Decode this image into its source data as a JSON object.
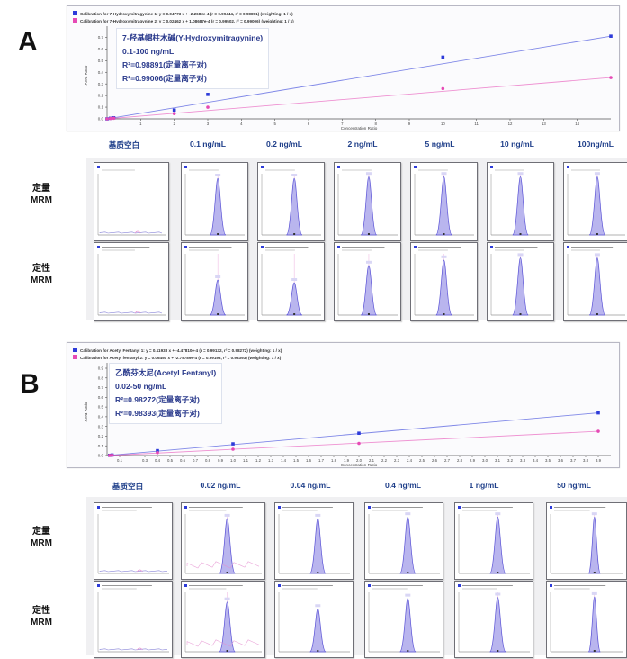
{
  "panels": [
    {
      "letter": "A",
      "legend": [
        {
          "text": "Calibration for 7-Hydroxymitragynine 1: y = 0.04773 x + -2.2683e-4 (r = 0.99444, r² = 0.98891) (weighting: 1 / x)",
          "color": "#2d3bd9"
        },
        {
          "text": "Calibration for 7-Hydroxymitragynine 2: y = 0.02462 x + 1.08687e-4 (r = 0.99502, r² = 0.99006) (weighting: 1 / x)",
          "color": "#e64ab5"
        }
      ],
      "annotation": {
        "compound": "7-羟基帽柱木碱(Y-Hydroxymitragynine)",
        "range": "0.1-100 ng/mL",
        "r2_quant": "R²=0.98891(定量离子对)",
        "r2_qual": "R²=0.99006(定量离子对)"
      },
      "concentrations": [
        "基质空白",
        "0.1 ng/mL",
        "0.2 ng/mL",
        "2 ng/mL",
        "5 ng/mL",
        "10 ng/mL",
        "100ng/mL"
      ],
      "row_labels": {
        "quant": [
          "定量",
          "MRM"
        ],
        "qual": [
          "定性",
          "MRM"
        ]
      }
    },
    {
      "letter": "B",
      "legend": [
        {
          "text": "Calibration for Acetyl Fentanyl 1: y = 0.11933 x + -4.47810e-4 (r = 0.99132, r² = 0.98272) (weighting: 1 / x)",
          "color": "#2d3bd9"
        },
        {
          "text": "Calibration for Acetyl fentanyl 2: y = 0.06450 x + -2.78789e-4 (r = 0.99193, r² = 0.98393) (weighting: 1 / x)",
          "color": "#e64ab5"
        }
      ],
      "annotation": {
        "compound": "乙酰芬太尼(Acetyl Fentanyl)",
        "range": "0.02-50 ng/mL",
        "r2_quant": "R²=0.98272(定量离子对)",
        "r2_qual": "R²=0.98393(定量离子对)"
      },
      "concentrations": [
        "基质空白",
        "0.02 ng/mL",
        "0.04 ng/mL",
        "0.4 ng/mL",
        "1 ng/mL",
        "50 ng/mL"
      ],
      "row_labels": {
        "quant": [
          "定量",
          "MRM"
        ],
        "qual": [
          "定性",
          "MRM"
        ]
      }
    }
  ],
  "colors": {
    "quant_series": "#2d3bd9",
    "qual_series": "#e64ab5",
    "peak_fill": "#b9b5ee",
    "peak_line": "#5a52d6",
    "qual_line": "#e58fd0"
  },
  "chart_data": [
    {
      "type": "scatter",
      "title": "",
      "xlabel": "Concentration Ratio",
      "ylabel": "Area Ratio",
      "xticks": [
        "1",
        "2",
        "3",
        "4",
        "5",
        "6",
        "7",
        "8",
        "9",
        "10",
        "11",
        "12",
        "13",
        "14"
      ],
      "yticks": [
        "0.0",
        "0.1",
        "0.2",
        "0.3",
        "0.4",
        "0.5",
        "0.6",
        "0.7"
      ],
      "xlim": [
        0,
        15
      ],
      "ylim": [
        0,
        0.75
      ],
      "grid": false,
      "series": [
        {
          "name": "Calibration for 7-Hydroxymitragynine 1",
          "color": "#2d3bd9",
          "slope": 0.04773,
          "intercept": -0.00023,
          "x": [
            0,
            0.1,
            0.2,
            2,
            3,
            10,
            15
          ],
          "y": [
            0.0,
            0.005,
            0.009,
            0.075,
            0.21,
            0.53,
            0.71
          ]
        },
        {
          "name": "Calibration for 7-Hydroxymitragynine 2",
          "color": "#e64ab5",
          "slope": 0.02462,
          "intercept": 0.00011,
          "x": [
            0,
            0.1,
            0.2,
            2,
            3,
            10,
            15
          ],
          "y": [
            0.0,
            0.003,
            0.005,
            0.045,
            0.1,
            0.26,
            0.355
          ]
        }
      ]
    },
    {
      "type": "scatter",
      "title": "",
      "xlabel": "Concentration Ratio",
      "ylabel": "Area Ratio",
      "xticks": [
        "0.1",
        "0.3",
        "0.4",
        "0.5",
        "0.6",
        "0.7",
        "0.8",
        "0.9",
        "1.0",
        "1.1",
        "1.2",
        "1.3",
        "1.4",
        "1.5",
        "1.6",
        "1.7",
        "1.8",
        "1.9",
        "2.0",
        "2.1",
        "2.2",
        "2.3",
        "2.4",
        "2.5",
        "2.6",
        "2.7",
        "2.8",
        "2.9",
        "3.0",
        "3.1",
        "3.2",
        "3.3",
        "3.4",
        "3.5",
        "3.6",
        "3.7",
        "3.8",
        "3.9"
      ],
      "yticks": [
        "0.0",
        "0.1",
        "0.2",
        "0.3",
        "0.4",
        "0.5",
        "0.6",
        "0.7",
        "0.8",
        "0.9"
      ],
      "xlim": [
        0,
        4.0
      ],
      "ylim": [
        0,
        0.9
      ],
      "grid": false,
      "series": [
        {
          "name": "Calibration for Acetyl Fentanyl 1",
          "color": "#2d3bd9",
          "slope": 0.11933,
          "intercept": -0.00045,
          "x": [
            0.02,
            0.04,
            0.4,
            1.0,
            2.0,
            3.9
          ],
          "y": [
            0.002,
            0.005,
            0.05,
            0.12,
            0.23,
            0.44
          ]
        },
        {
          "name": "Calibration for Acetyl fentanyl 2",
          "color": "#e64ab5",
          "slope": 0.0645,
          "intercept": -0.00028,
          "x": [
            0.02,
            0.04,
            0.4,
            1.0,
            2.0,
            3.9
          ],
          "y": [
            0.001,
            0.003,
            0.03,
            0.065,
            0.125,
            0.25
          ]
        }
      ]
    }
  ]
}
